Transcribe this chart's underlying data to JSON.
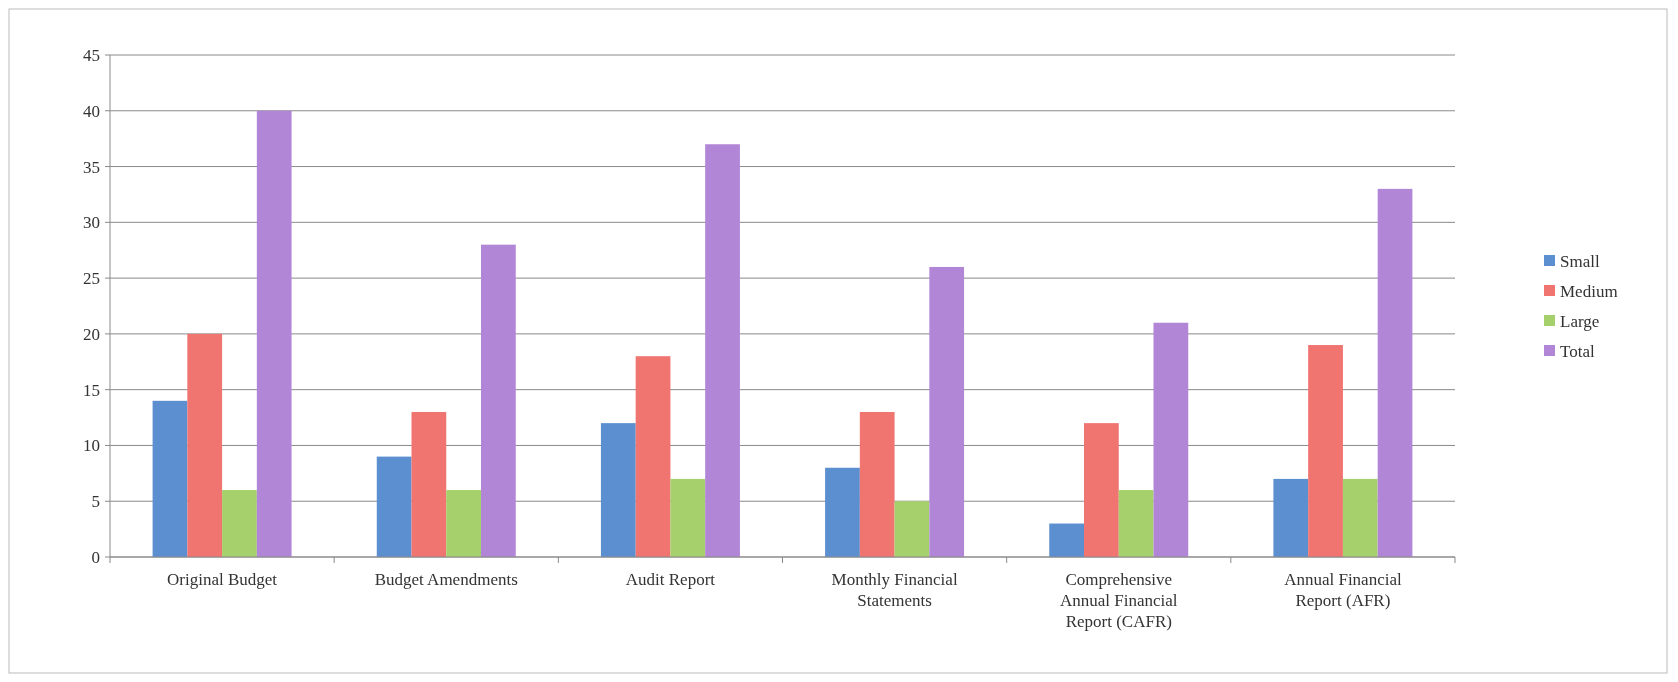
{
  "chart_data": {
    "type": "bar",
    "categories": [
      "Original Budget",
      "Budget Amendments",
      "Audit Report",
      "Monthly Financial Statements",
      "Comprehensive Annual Financial Report (CAFR)",
      "Annual Financial Report (AFR)"
    ],
    "series": [
      {
        "name": "Small",
        "color": "#5b8fd0",
        "values": [
          14,
          9,
          12,
          8,
          3,
          7
        ]
      },
      {
        "name": "Medium",
        "color": "#f07470",
        "values": [
          20,
          13,
          18,
          13,
          12,
          19
        ]
      },
      {
        "name": "Large",
        "color": "#a5d06b",
        "values": [
          6,
          6,
          7,
          5,
          6,
          7
        ]
      },
      {
        "name": "Total",
        "color": "#b286d6",
        "values": [
          40,
          28,
          37,
          26,
          21,
          33
        ]
      }
    ],
    "ylim": [
      0,
      45
    ],
    "yticks": [
      0,
      5,
      10,
      15,
      20,
      25,
      30,
      35,
      40,
      45
    ],
    "grid": "y",
    "legend": "right"
  }
}
